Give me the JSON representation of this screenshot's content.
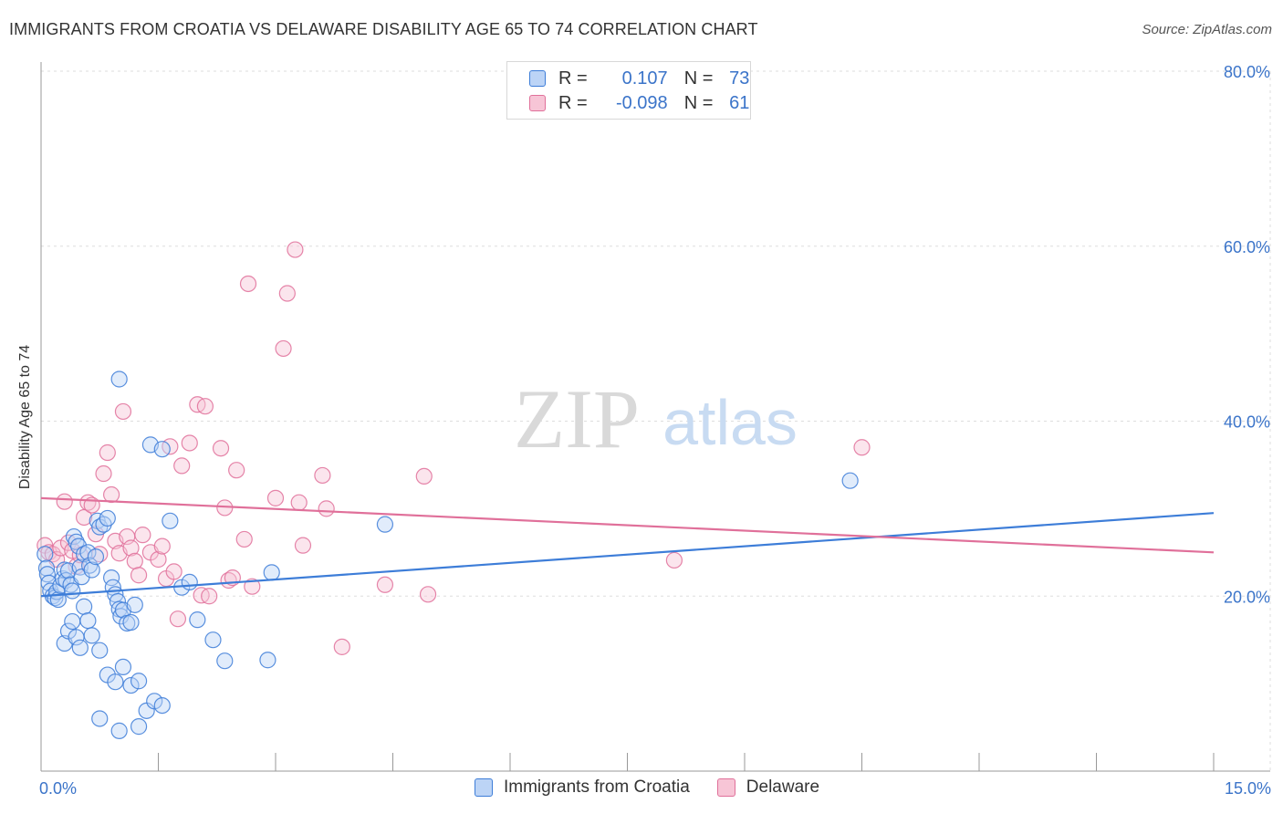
{
  "header": {
    "title": "IMMIGRANTS FROM CROATIA VS DELAWARE DISABILITY AGE 65 TO 74 CORRELATION CHART",
    "source": "Source: ZipAtlas.com"
  },
  "watermark": {
    "zip": "ZIP",
    "atlas": "atlas"
  },
  "legend_stats": [
    {
      "r_label": "R =",
      "r_value": "0.107",
      "n_label": "N =",
      "n_value": "73"
    },
    {
      "r_label": "R =",
      "r_value": "-0.098",
      "n_label": "N =",
      "n_value": "61"
    }
  ],
  "colors": {
    "blue": "#3d7dd8",
    "blue_fill": "#bcd4f6",
    "pink": "#e0709a",
    "pink_fill": "#f7c5d6",
    "tick_text": "#3b74c9",
    "grid": "#dddddd"
  },
  "chart_data": {
    "type": "scatter",
    "title": "IMMIGRANTS FROM CROATIA VS DELAWARE DISABILITY AGE 65 TO 74 CORRELATION CHART",
    "xlabel": "",
    "ylabel": "Disability Age 65 to 74",
    "xlim": [
      0,
      15
    ],
    "ylim": [
      0,
      80
    ],
    "x_tick_labels": [
      "0.0%",
      "15.0%"
    ],
    "y_ticks": [
      20,
      40,
      60,
      80
    ],
    "y_tick_labels": [
      "20.0%",
      "40.0%",
      "60.0%",
      "80.0%"
    ],
    "grid": true,
    "legend_position": "bottom",
    "series": [
      {
        "name": "Immigrants from Croatia",
        "color": "#3d7dd8",
        "fill": "#bcd4f6",
        "r": 0.107,
        "n": 73,
        "trend": {
          "x": [
            0,
            15
          ],
          "y": [
            20.0,
            29.5
          ]
        },
        "points": [
          [
            0.05,
            24.8
          ],
          [
            0.07,
            23.2
          ],
          [
            0.08,
            22.5
          ],
          [
            0.1,
            21.5
          ],
          [
            0.12,
            20.6
          ],
          [
            0.15,
            20.0
          ],
          [
            0.18,
            19.8
          ],
          [
            0.2,
            20.5
          ],
          [
            0.22,
            19.6
          ],
          [
            0.25,
            21.2
          ],
          [
            0.28,
            22.0
          ],
          [
            0.3,
            23.0
          ],
          [
            0.32,
            21.8
          ],
          [
            0.35,
            22.9
          ],
          [
            0.38,
            21.3
          ],
          [
            0.4,
            20.6
          ],
          [
            0.42,
            26.8
          ],
          [
            0.45,
            26.2
          ],
          [
            0.48,
            25.7
          ],
          [
            0.5,
            23.3
          ],
          [
            0.52,
            22.2
          ],
          [
            0.55,
            24.8
          ],
          [
            0.6,
            25.0
          ],
          [
            0.62,
            23.5
          ],
          [
            0.65,
            23.0
          ],
          [
            0.7,
            24.5
          ],
          [
            0.72,
            28.6
          ],
          [
            0.75,
            27.9
          ],
          [
            0.8,
            28.2
          ],
          [
            0.85,
            28.9
          ],
          [
            0.9,
            22.1
          ],
          [
            0.92,
            21.0
          ],
          [
            0.95,
            20.2
          ],
          [
            0.98,
            19.4
          ],
          [
            1.0,
            18.5
          ],
          [
            1.02,
            17.7
          ],
          [
            1.05,
            18.4
          ],
          [
            1.1,
            16.9
          ],
          [
            1.15,
            17.0
          ],
          [
            1.2,
            19.0
          ],
          [
            0.3,
            14.6
          ],
          [
            0.35,
            16.0
          ],
          [
            0.4,
            17.1
          ],
          [
            0.45,
            15.3
          ],
          [
            0.5,
            14.1
          ],
          [
            0.55,
            18.8
          ],
          [
            0.6,
            17.2
          ],
          [
            0.65,
            15.5
          ],
          [
            0.75,
            13.8
          ],
          [
            0.85,
            11.0
          ],
          [
            0.95,
            10.2
          ],
          [
            1.05,
            11.9
          ],
          [
            1.15,
            9.8
          ],
          [
            1.25,
            10.3
          ],
          [
            1.35,
            6.9
          ],
          [
            1.45,
            8.0
          ],
          [
            1.55,
            7.5
          ],
          [
            0.75,
            6.0
          ],
          [
            1.25,
            5.1
          ],
          [
            1.0,
            4.6
          ],
          [
            1.0,
            44.8
          ],
          [
            1.4,
            37.3
          ],
          [
            1.55,
            36.8
          ],
          [
            1.65,
            28.6
          ],
          [
            1.8,
            21.0
          ],
          [
            1.9,
            21.6
          ],
          [
            2.0,
            17.3
          ],
          [
            2.2,
            15.0
          ],
          [
            2.35,
            12.6
          ],
          [
            2.9,
            12.7
          ],
          [
            2.95,
            22.7
          ],
          [
            4.4,
            28.2
          ],
          [
            10.35,
            33.2
          ]
        ]
      },
      {
        "name": "Delaware",
        "color": "#e0709a",
        "fill": "#f7c5d6",
        "r": -0.098,
        "n": 61,
        "trend": {
          "x": [
            0,
            15
          ],
          "y": [
            31.2,
            25.0
          ]
        },
        "points": [
          [
            0.05,
            25.8
          ],
          [
            0.1,
            25.0
          ],
          [
            0.15,
            24.8
          ],
          [
            0.2,
            24.2
          ],
          [
            0.25,
            25.5
          ],
          [
            0.3,
            30.8
          ],
          [
            0.35,
            26.1
          ],
          [
            0.4,
            25.2
          ],
          [
            0.45,
            23.4
          ],
          [
            0.5,
            24.7
          ],
          [
            0.55,
            29.0
          ],
          [
            0.6,
            30.7
          ],
          [
            0.65,
            30.4
          ],
          [
            0.7,
            27.1
          ],
          [
            0.75,
            24.8
          ],
          [
            0.8,
            34.0
          ],
          [
            0.85,
            36.4
          ],
          [
            0.9,
            31.6
          ],
          [
            0.95,
            26.3
          ],
          [
            1.0,
            24.9
          ],
          [
            1.05,
            41.1
          ],
          [
            1.1,
            26.8
          ],
          [
            1.15,
            25.5
          ],
          [
            1.2,
            24.0
          ],
          [
            1.25,
            22.4
          ],
          [
            1.3,
            27.0
          ],
          [
            1.4,
            25.0
          ],
          [
            1.5,
            24.2
          ],
          [
            1.55,
            25.7
          ],
          [
            1.6,
            22.0
          ],
          [
            1.65,
            37.1
          ],
          [
            1.7,
            22.8
          ],
          [
            1.75,
            17.4
          ],
          [
            1.8,
            34.9
          ],
          [
            1.9,
            37.5
          ],
          [
            2.0,
            41.9
          ],
          [
            2.05,
            20.1
          ],
          [
            2.1,
            41.7
          ],
          [
            2.15,
            20.0
          ],
          [
            2.3,
            36.9
          ],
          [
            2.35,
            30.1
          ],
          [
            2.4,
            21.8
          ],
          [
            2.45,
            22.1
          ],
          [
            2.5,
            34.4
          ],
          [
            2.6,
            26.5
          ],
          [
            2.7,
            21.1
          ],
          [
            2.65,
            55.7
          ],
          [
            3.0,
            31.2
          ],
          [
            3.1,
            48.3
          ],
          [
            3.15,
            54.6
          ],
          [
            3.25,
            59.6
          ],
          [
            3.3,
            30.7
          ],
          [
            3.35,
            25.8
          ],
          [
            3.6,
            33.8
          ],
          [
            3.65,
            30.0
          ],
          [
            3.85,
            14.2
          ],
          [
            4.4,
            21.3
          ],
          [
            4.95,
            20.2
          ],
          [
            4.9,
            33.7
          ],
          [
            8.1,
            24.1
          ],
          [
            10.5,
            37.0
          ]
        ]
      }
    ]
  },
  "bottom_legend": {
    "series_a": "Immigrants from Croatia",
    "series_b": "Delaware"
  }
}
